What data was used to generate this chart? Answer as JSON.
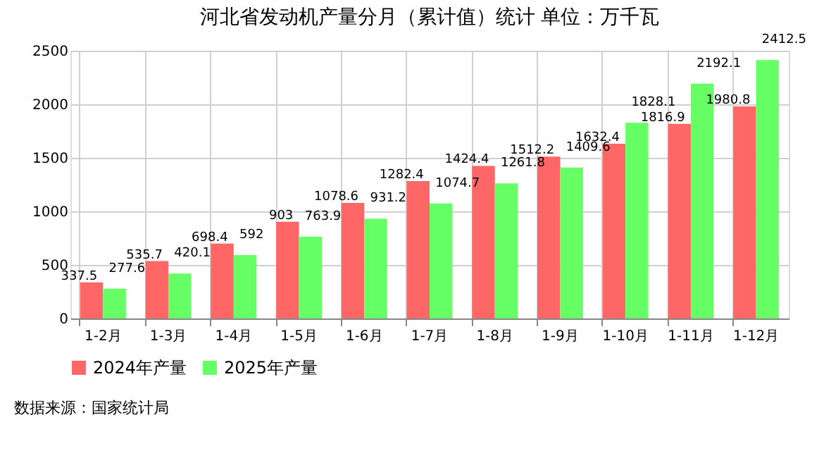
{
  "chart_data": {
    "type": "bar",
    "title": "河北省发动机产量分月（累计值）统计  单位：万千瓦",
    "categories": [
      "1-2月",
      "1-3月",
      "1-4月",
      "1-5月",
      "1-6月",
      "1-7月",
      "1-8月",
      "1-9月",
      "1-10月",
      "1-11月",
      "1-12月"
    ],
    "series": [
      {
        "name": "2024年产量",
        "color": "#ff6666",
        "values": [
          337.5,
          535.7,
          698.4,
          903,
          1078.6,
          1282.4,
          1424.4,
          1512.2,
          1632.4,
          1816.9,
          1980.8
        ]
      },
      {
        "name": "2025年产量",
        "color": "#66ff66",
        "values": [
          277.6,
          420.1,
          592,
          763.9,
          931.2,
          1074.7,
          1261.8,
          1409.6,
          1828.1,
          2192.1,
          2412.5
        ]
      }
    ],
    "ylim": [
      0,
      2500
    ],
    "yticks": [
      0,
      500,
      1000,
      1500,
      2000,
      2500
    ],
    "grid": true,
    "legend": "bottom",
    "data_labels": true,
    "annotations": [
      "数据来源：国家统计局"
    ]
  }
}
